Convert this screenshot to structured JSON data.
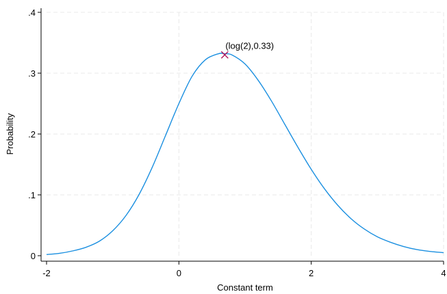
{
  "chart_data": {
    "type": "line",
    "xlabel": "Constant term",
    "ylabel": "Probability",
    "xlim": [
      -2,
      4
    ],
    "ylim": [
      0,
      0.4
    ],
    "x_ticks": [
      -2,
      0,
      2,
      4
    ],
    "x_tick_labels": [
      "-2",
      "0",
      "2",
      "4"
    ],
    "y_ticks": [
      0,
      0.1,
      0.2,
      0.3,
      0.4
    ],
    "y_tick_labels": [
      "0",
      ".1",
      ".2",
      ".3",
      ".4"
    ],
    "grid": true,
    "series": [
      {
        "color": "#1a8fe0",
        "x": [
          -2.0,
          -1.8,
          -1.6,
          -1.4,
          -1.2,
          -1.0,
          -0.8,
          -0.6,
          -0.4,
          -0.2,
          0.0,
          0.2,
          0.4,
          0.6,
          0.693,
          0.8,
          1.0,
          1.2,
          1.4,
          1.6,
          1.8,
          2.0,
          2.2,
          2.4,
          2.6,
          2.8,
          3.0,
          3.2,
          3.4,
          3.6,
          3.8,
          4.0
        ],
        "y": [
          0.002,
          0.004,
          0.008,
          0.014,
          0.024,
          0.041,
          0.066,
          0.101,
          0.146,
          0.198,
          0.25,
          0.295,
          0.322,
          0.332,
          0.332,
          0.33,
          0.315,
          0.288,
          0.254,
          0.216,
          0.178,
          0.142,
          0.11,
          0.083,
          0.061,
          0.044,
          0.031,
          0.022,
          0.015,
          0.01,
          0.007,
          0.005
        ]
      }
    ],
    "annotations": [
      {
        "x": 0.693,
        "y": 0.33,
        "text": "(log(2),0.33)",
        "marker": "x",
        "color": "#b0125a"
      }
    ]
  }
}
